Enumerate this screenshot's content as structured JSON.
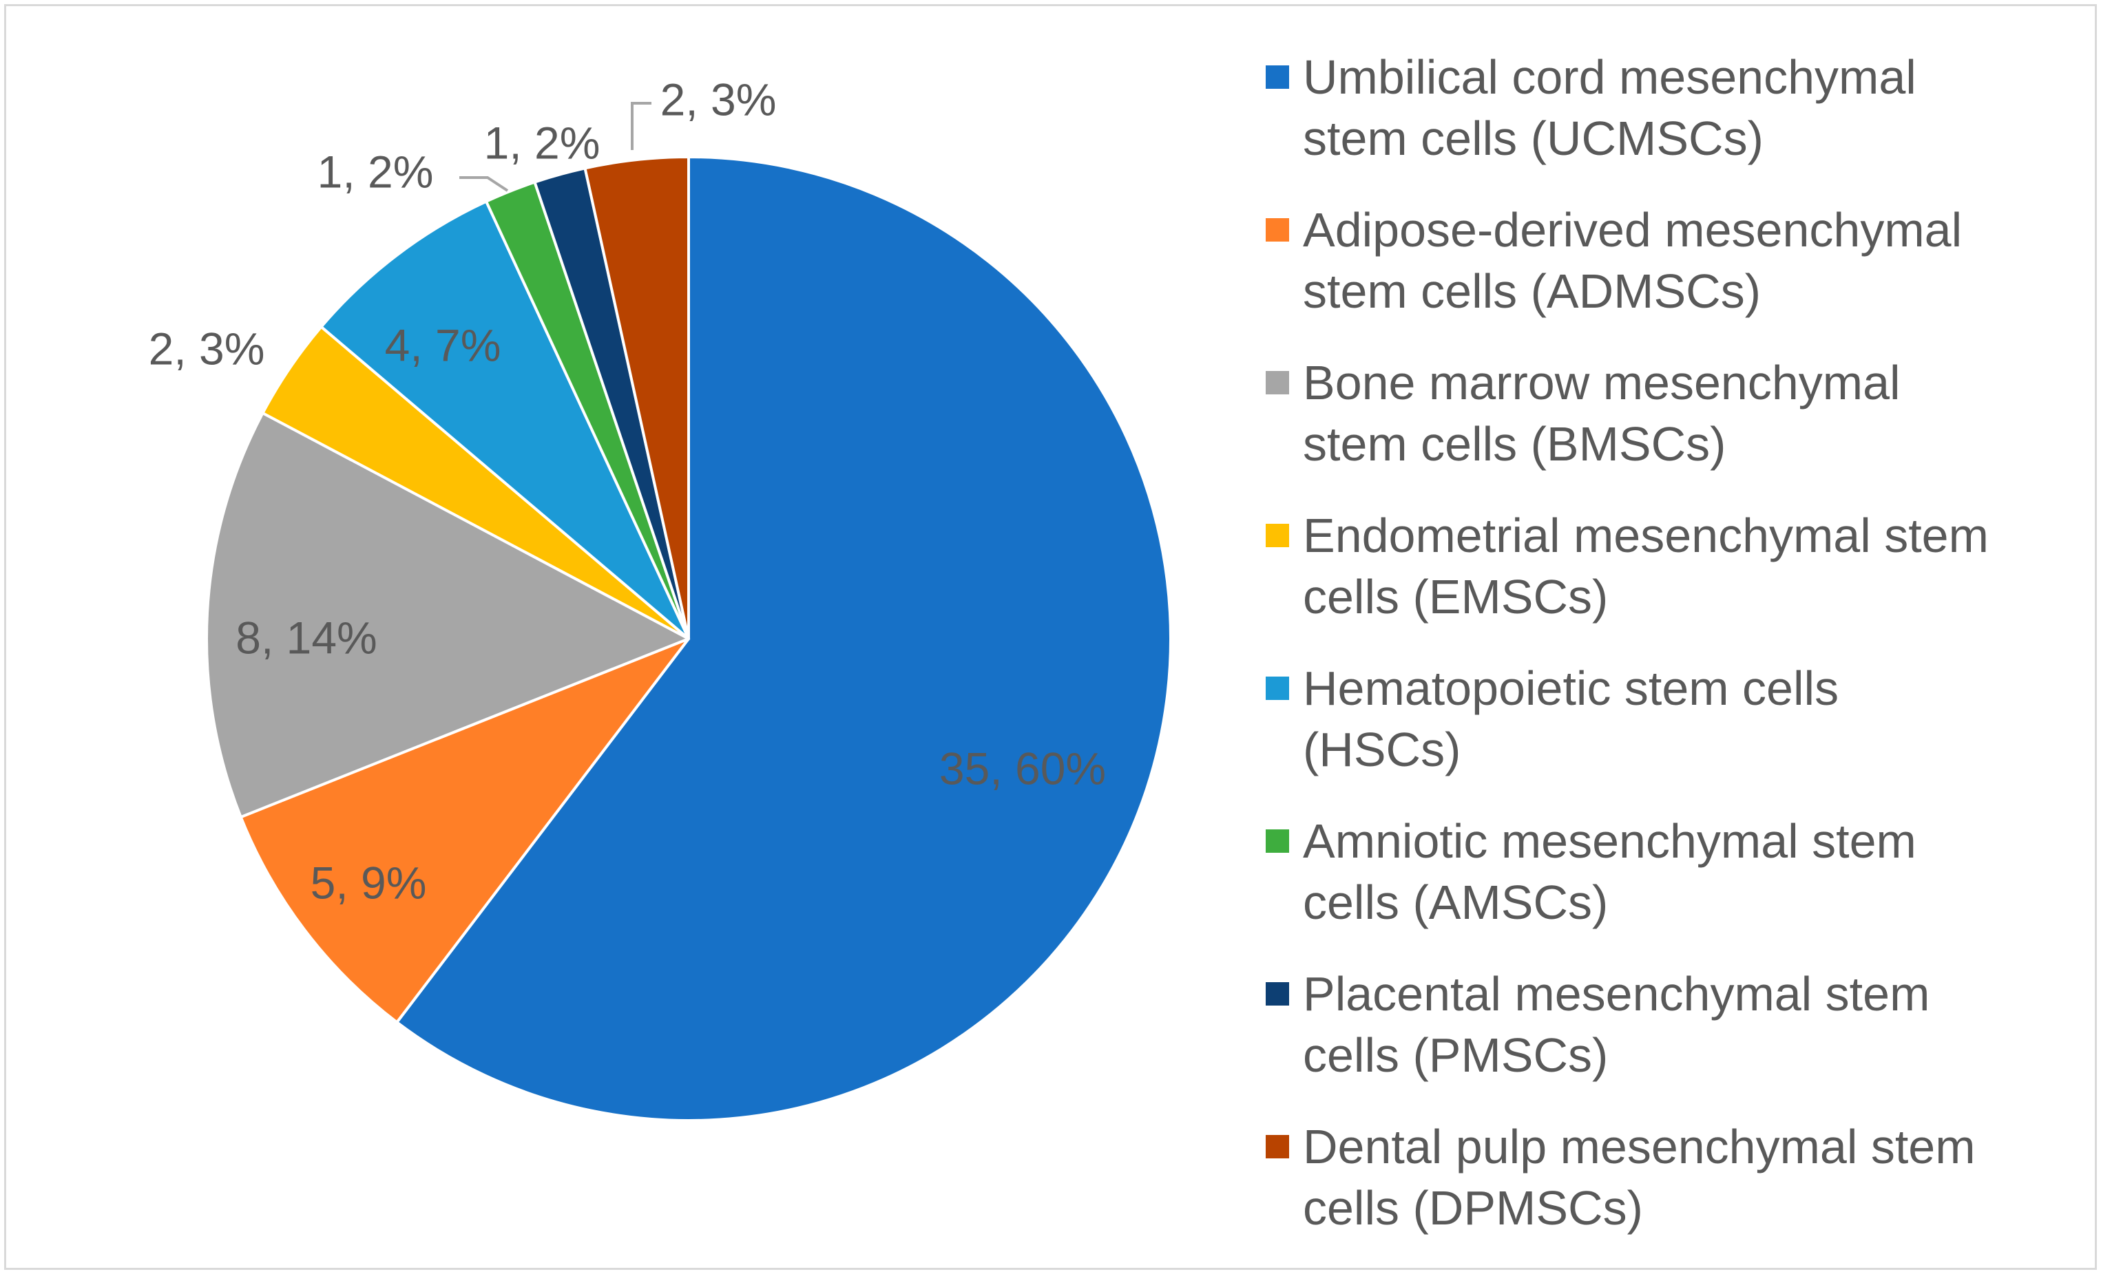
{
  "chart_data": {
    "type": "pie",
    "title": "",
    "start_angle_deg": 0,
    "direction": "clockwise",
    "legend_position": "right",
    "slices": [
      {
        "key": "ucmsc",
        "legend": [
          "Umbilical cord mesenchymal",
          "stem cells  (UCMSCs)"
        ],
        "value": 35,
        "percent": "60%",
        "label": "35, 60%",
        "color": "#1771C7"
      },
      {
        "key": "admsc",
        "legend": [
          "Adipose-derived mesenchymal",
          "stem cells (ADMSCs)"
        ],
        "value": 5,
        "percent": "9%",
        "label": "5, 9%",
        "color": "#FF7F27"
      },
      {
        "key": "bmsc",
        "legend": [
          "Bone marrow mesenchymal",
          "stem cells (BMSCs)"
        ],
        "value": 8,
        "percent": "14%",
        "label": "8, 14%",
        "color": "#A6A6A6"
      },
      {
        "key": "emsc",
        "legend": [
          "Endometrial mesenchymal stem",
          "cells (EMSCs)"
        ],
        "value": 2,
        "percent": "3%",
        "label": "2, 3%",
        "color": "#FFC000"
      },
      {
        "key": "hsc",
        "legend": [
          "Hematopoietic stem cells",
          "(HSCs)"
        ],
        "value": 4,
        "percent": "7%",
        "label": "4, 7%",
        "color": "#1C9AD6"
      },
      {
        "key": "amsc",
        "legend": [
          "Amniotic mesenchymal stem",
          "cells (AMSCs)"
        ],
        "value": 1,
        "percent": "2%",
        "label": "1, 2%",
        "color": "#3EAD3E"
      },
      {
        "key": "pmsc",
        "legend": [
          "Placental mesenchymal stem",
          "cells (PMSCs)"
        ],
        "value": 1,
        "percent": "2%",
        "label": "1, 2%",
        "color": "#0D3F73"
      },
      {
        "key": "dpmsc",
        "legend": [
          "Dental pulp mesenchymal stem",
          "cells (DPMSCs)"
        ],
        "value": 2,
        "percent": "3%",
        "label": "2, 3%",
        "color": "#B84300"
      }
    ]
  }
}
